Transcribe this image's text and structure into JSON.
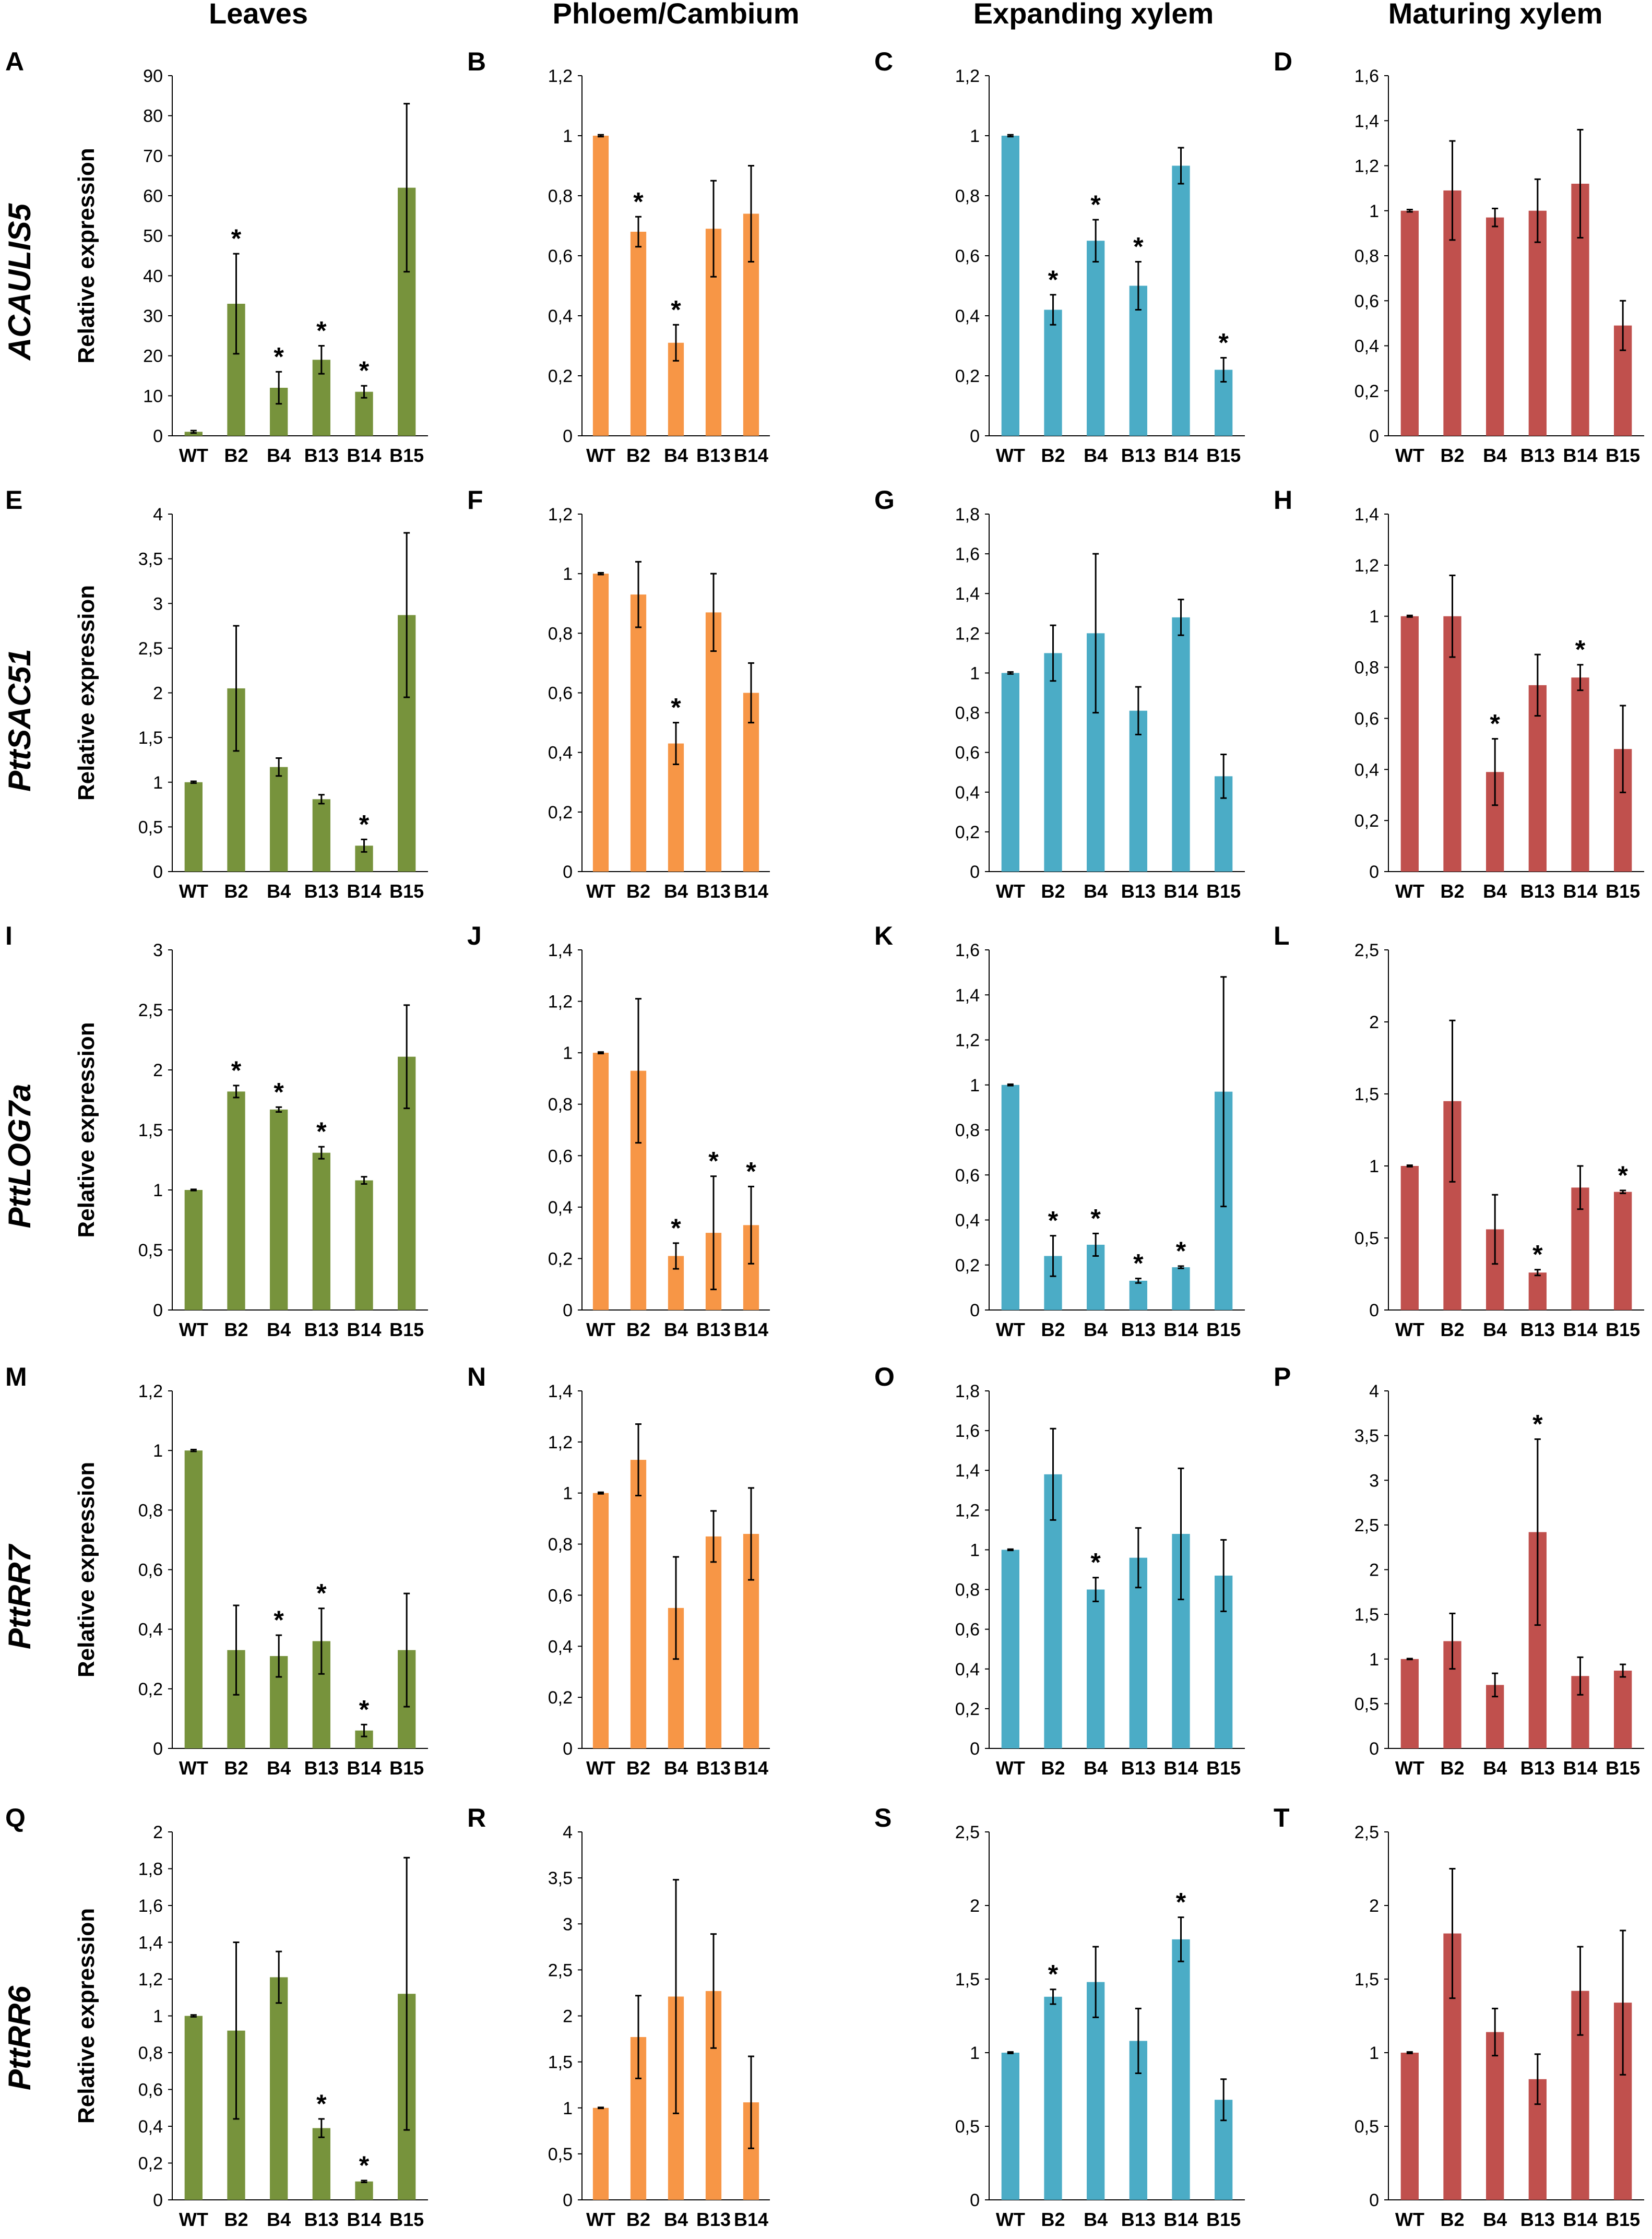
{
  "headers": {
    "col1": "Leaves",
    "col2": "Phloem/Cambium",
    "col3": "Expanding xylem",
    "col4": "Maturing xylem"
  },
  "rows": {
    "row1": "ACAULIS5",
    "row2": "PttSAC51",
    "row3": "PttLOG7a",
    "row4": "PttRR7",
    "row5": "PttRR6"
  },
  "y_axis_label": "Relative expression",
  "colors": {
    "Leaves": "#77933c",
    "Phloem/Cambium": "#f79646",
    "Expanding xylem": "#4bacc6",
    "Maturing xylem": "#c0504d"
  },
  "chart_data": [
    {
      "panel": "A",
      "gene": "ACAULIS5",
      "tissue": "Leaves",
      "type": "bar",
      "categories": [
        "WT",
        "B2",
        "B4",
        "B13",
        "B14",
        "B15"
      ],
      "values": [
        1,
        33,
        12,
        19,
        11,
        62
      ],
      "errors": [
        0.3,
        12.5,
        4,
        3.5,
        1.5,
        21
      ],
      "significant": [
        false,
        true,
        true,
        true,
        true,
        false
      ],
      "ylim": [
        0,
        90
      ],
      "yticks": [
        "0",
        "10",
        "20",
        "30",
        "40",
        "50",
        "60",
        "70",
        "80",
        "90"
      ],
      "ylabel": "Relative expression"
    },
    {
      "panel": "B",
      "gene": "ACAULIS5",
      "tissue": "Phloem/Cambium",
      "type": "bar",
      "categories": [
        "WT",
        "B2",
        "B4",
        "B13",
        "B14"
      ],
      "values": [
        1,
        0.68,
        0.31,
        0.69,
        0.74
      ],
      "errors": [
        0.003,
        0.05,
        0.06,
        0.16,
        0.16
      ],
      "significant": [
        false,
        true,
        true,
        false,
        false
      ],
      "ylim": [
        0,
        1.2
      ],
      "yticks": [
        "0",
        "0,2",
        "0,4",
        "0,6",
        "0,8",
        "1",
        "1,2"
      ]
    },
    {
      "panel": "C",
      "gene": "ACAULIS5",
      "tissue": "Expanding xylem",
      "type": "bar",
      "categories": [
        "WT",
        "B2",
        "B4",
        "B13",
        "B14",
        "B15"
      ],
      "values": [
        1,
        0.42,
        0.65,
        0.5,
        0.9,
        0.22
      ],
      "errors": [
        0.003,
        0.05,
        0.07,
        0.08,
        0.06,
        0.04
      ],
      "significant": [
        false,
        true,
        true,
        true,
        false,
        true
      ],
      "ylim": [
        0,
        1.2
      ],
      "yticks": [
        "0",
        "0,2",
        "0,4",
        "0,6",
        "0,8",
        "1",
        "1,2"
      ]
    },
    {
      "panel": "D",
      "gene": "ACAULIS5",
      "tissue": "Maturing xylem",
      "type": "bar",
      "categories": [
        "WT",
        "B2",
        "B4",
        "B13",
        "B14",
        "B15"
      ],
      "values": [
        1,
        1.09,
        0.97,
        1,
        1.12,
        0.49
      ],
      "errors": [
        0.005,
        0.22,
        0.04,
        0.14,
        0.24,
        0.11
      ],
      "significant": [
        false,
        false,
        false,
        false,
        false,
        false
      ],
      "ylim": [
        0,
        1.6
      ],
      "yticks": [
        "0",
        "0,2",
        "0,4",
        "0,6",
        "0,8",
        "1",
        "1,2",
        "1,4",
        "1,6"
      ]
    },
    {
      "panel": "E",
      "gene": "PttSAC51",
      "tissue": "Leaves",
      "type": "bar",
      "categories": [
        "WT",
        "B2",
        "B4",
        "B13",
        "B14",
        "B15"
      ],
      "values": [
        1,
        2.05,
        1.17,
        0.81,
        0.29,
        2.87
      ],
      "errors": [
        0.01,
        0.7,
        0.1,
        0.05,
        0.07,
        0.92
      ],
      "significant": [
        false,
        false,
        false,
        false,
        true,
        false
      ],
      "ylim": [
        0,
        4
      ],
      "yticks": [
        "0",
        "0,5",
        "1",
        "1,5",
        "2",
        "2,5",
        "3",
        "3,5",
        "4"
      ],
      "ylabel": "Relative expression"
    },
    {
      "panel": "F",
      "gene": "PttSAC51",
      "tissue": "Phloem/Cambium",
      "type": "bar",
      "categories": [
        "WT",
        "B2",
        "B4",
        "B13",
        "B14"
      ],
      "values": [
        1,
        0.93,
        0.43,
        0.87,
        0.6
      ],
      "errors": [
        0.003,
        0.11,
        0.07,
        0.13,
        0.1
      ],
      "significant": [
        false,
        false,
        true,
        false,
        false
      ],
      "ylim": [
        0,
        1.2
      ],
      "yticks": [
        "0",
        "0,2",
        "0,4",
        "0,6",
        "0,8",
        "1",
        "1,2"
      ]
    },
    {
      "panel": "G",
      "gene": "PttSAC51",
      "tissue": "Expanding xylem",
      "type": "bar",
      "categories": [
        "WT",
        "B2",
        "B4",
        "B13",
        "B14",
        "B15"
      ],
      "values": [
        1,
        1.1,
        1.2,
        0.81,
        1.28,
        0.48
      ],
      "errors": [
        0.005,
        0.14,
        0.4,
        0.12,
        0.09,
        0.11
      ],
      "significant": [
        false,
        false,
        false,
        false,
        false,
        false
      ],
      "ylim": [
        0,
        1.8
      ],
      "yticks": [
        "0",
        "0,2",
        "0,4",
        "0,6",
        "0,8",
        "1",
        "1,2",
        "1,4",
        "1,6",
        "1,8"
      ]
    },
    {
      "panel": "H",
      "gene": "PttSAC51",
      "tissue": "Maturing xylem",
      "type": "bar",
      "categories": [
        "WT",
        "B2",
        "B4",
        "B13",
        "B14",
        "B15"
      ],
      "values": [
        1,
        1,
        0.39,
        0.73,
        0.76,
        0.48
      ],
      "errors": [
        0.003,
        0.16,
        0.13,
        0.12,
        0.05,
        0.17
      ],
      "significant": [
        false,
        false,
        true,
        false,
        true,
        false
      ],
      "ylim": [
        0,
        1.4
      ],
      "yticks": [
        "0",
        "0,2",
        "0,4",
        "0,6",
        "0,8",
        "1",
        "1,2",
        "1,4"
      ]
    },
    {
      "panel": "I",
      "gene": "PttLOG7a",
      "tissue": "Leaves",
      "type": "bar",
      "categories": [
        "WT",
        "B2",
        "B4",
        "B13",
        "B14",
        "B15"
      ],
      "values": [
        1,
        1.82,
        1.67,
        1.31,
        1.08,
        2.11
      ],
      "errors": [
        0.005,
        0.05,
        0.02,
        0.05,
        0.03,
        0.43
      ],
      "significant": [
        false,
        true,
        true,
        true,
        false,
        false
      ],
      "ylim": [
        0,
        3
      ],
      "yticks": [
        "0",
        "0,5",
        "1",
        "1,5",
        "2",
        "2,5",
        "3"
      ],
      "ylabel": "Relative expression"
    },
    {
      "panel": "J",
      "gene": "PttLOG7a",
      "tissue": "Phloem/Cambium",
      "type": "bar",
      "categories": [
        "WT",
        "B2",
        "B4",
        "B13",
        "B14"
      ],
      "values": [
        1,
        0.93,
        0.21,
        0.3,
        0.33
      ],
      "errors": [
        0.003,
        0.28,
        0.05,
        0.22,
        0.15
      ],
      "significant": [
        false,
        false,
        true,
        true,
        true
      ],
      "ylim": [
        0,
        1.4
      ],
      "yticks": [
        "0",
        "0,2",
        "0,4",
        "0,6",
        "0,8",
        "1",
        "1,2",
        "1,4"
      ]
    },
    {
      "panel": "K",
      "gene": "PttLOG7a",
      "tissue": "Expanding xylem",
      "type": "bar",
      "categories": [
        "WT",
        "B2",
        "B4",
        "B13",
        "B14",
        "B15"
      ],
      "values": [
        1,
        0.24,
        0.29,
        0.13,
        0.19,
        0.97
      ],
      "errors": [
        0.003,
        0.09,
        0.05,
        0.01,
        0.005,
        0.51
      ],
      "significant": [
        false,
        true,
        true,
        true,
        true,
        false
      ],
      "ylim": [
        0,
        1.6
      ],
      "yticks": [
        "0",
        "0,2",
        "0,4",
        "0,6",
        "0,8",
        "1",
        "1,2",
        "1,4",
        "1,6"
      ]
    },
    {
      "panel": "L",
      "gene": "PttLOG7a",
      "tissue": "Maturing xylem",
      "type": "bar",
      "categories": [
        "WT",
        "B2",
        "B4",
        "B13",
        "B14",
        "B15"
      ],
      "values": [
        1,
        1.45,
        0.56,
        0.26,
        0.85,
        0.82
      ],
      "errors": [
        0.005,
        0.56,
        0.24,
        0.02,
        0.15,
        0.01
      ],
      "significant": [
        false,
        false,
        false,
        true,
        false,
        true
      ],
      "ylim": [
        0,
        2.5
      ],
      "yticks": [
        "0",
        "0,5",
        "1",
        "1,5",
        "2",
        "2,5"
      ]
    },
    {
      "panel": "M",
      "gene": "PttRR7",
      "tissue": "Leaves",
      "type": "bar",
      "categories": [
        "WT",
        "B2",
        "B4",
        "B13",
        "B14",
        "B15"
      ],
      "values": [
        1,
        0.33,
        0.31,
        0.36,
        0.06,
        0.33
      ],
      "errors": [
        0.003,
        0.15,
        0.07,
        0.11,
        0.02,
        0.19
      ],
      "significant": [
        false,
        false,
        true,
        true,
        true,
        false
      ],
      "ylim": [
        0,
        1.2
      ],
      "yticks": [
        "0",
        "0,2",
        "0,4",
        "0,6",
        "0,8",
        "1",
        "1,2"
      ],
      "ylabel": "Relative expression"
    },
    {
      "panel": "N",
      "gene": "PttRR7",
      "tissue": "Phloem/Cambium",
      "type": "bar",
      "categories": [
        "WT",
        "B2",
        "B4",
        "B13",
        "B14"
      ],
      "values": [
        1,
        1.13,
        0.55,
        0.83,
        0.84
      ],
      "errors": [
        0.003,
        0.14,
        0.2,
        0.1,
        0.18
      ],
      "significant": [
        false,
        false,
        false,
        false,
        false
      ],
      "ylim": [
        0,
        1.4
      ],
      "yticks": [
        "0",
        "0,2",
        "0,4",
        "0,6",
        "0,8",
        "1",
        "1,2",
        "1,4"
      ]
    },
    {
      "panel": "O",
      "gene": "PttRR7",
      "tissue": "Expanding xylem",
      "type": "bar",
      "categories": [
        "WT",
        "B2",
        "B4",
        "B13",
        "B14",
        "B15"
      ],
      "values": [
        1,
        1.38,
        0.8,
        0.96,
        1.08,
        0.87
      ],
      "errors": [
        0.003,
        0.23,
        0.06,
        0.15,
        0.33,
        0.18
      ],
      "significant": [
        false,
        false,
        true,
        false,
        false,
        false
      ],
      "ylim": [
        0,
        1.8
      ],
      "yticks": [
        "0",
        "0,2",
        "0,4",
        "0,6",
        "0,8",
        "1",
        "1,2",
        "1,4",
        "1,6",
        "1,8"
      ]
    },
    {
      "panel": "P",
      "gene": "PttRR7",
      "tissue": "Maturing xylem",
      "type": "bar",
      "categories": [
        "WT",
        "B2",
        "B4",
        "B13",
        "B14",
        "B15"
      ],
      "values": [
        1,
        1.2,
        0.71,
        2.42,
        0.81,
        0.87
      ],
      "errors": [
        0.005,
        0.31,
        0.13,
        1.04,
        0.21,
        0.07
      ],
      "significant": [
        false,
        false,
        false,
        true,
        false,
        false
      ],
      "ylim": [
        0,
        4
      ],
      "yticks": [
        "0",
        "0,5",
        "1",
        "1,5",
        "2",
        "2,5",
        "3",
        "3,5",
        "4"
      ]
    },
    {
      "panel": "Q",
      "gene": "PttRR6",
      "tissue": "Leaves",
      "type": "bar",
      "categories": [
        "WT",
        "B2",
        "B4",
        "B13",
        "B14",
        "B15"
      ],
      "values": [
        1,
        0.92,
        1.21,
        0.39,
        0.1,
        1.12
      ],
      "errors": [
        0.005,
        0.48,
        0.14,
        0.05,
        0.005,
        0.74
      ],
      "significant": [
        false,
        false,
        false,
        true,
        true,
        false
      ],
      "ylim": [
        0,
        2
      ],
      "yticks": [
        "0",
        "0,2",
        "0,4",
        "0,6",
        "0,8",
        "1",
        "1,2",
        "1,4",
        "1,6",
        "1,8",
        "2"
      ],
      "ylabel": "Relative expression"
    },
    {
      "panel": "R",
      "gene": "PttRR6",
      "tissue": "Phloem/Cambium",
      "type": "bar",
      "categories": [
        "WT",
        "B2",
        "B4",
        "B13",
        "B14"
      ],
      "values": [
        1,
        1.77,
        2.21,
        2.27,
        1.06
      ],
      "errors": [
        0.005,
        0.45,
        1.27,
        0.62,
        0.5
      ],
      "significant": [
        false,
        false,
        false,
        false,
        false
      ],
      "ylim": [
        0,
        4
      ],
      "yticks": [
        "0",
        "0,5",
        "1",
        "1,5",
        "2",
        "2,5",
        "3",
        "3,5",
        "4"
      ]
    },
    {
      "panel": "S",
      "gene": "PttRR6",
      "tissue": "Expanding xylem",
      "type": "bar",
      "categories": [
        "WT",
        "B2",
        "B4",
        "B13",
        "B14",
        "B15"
      ],
      "values": [
        1,
        1.38,
        1.48,
        1.08,
        1.77,
        0.68
      ],
      "errors": [
        0.005,
        0.05,
        0.24,
        0.22,
        0.15,
        0.14
      ],
      "significant": [
        false,
        true,
        false,
        false,
        true,
        false
      ],
      "ylim": [
        0,
        2.5
      ],
      "yticks": [
        "0",
        "0,5",
        "1",
        "1,5",
        "2",
        "2,5"
      ]
    },
    {
      "panel": "T",
      "gene": "PttRR6",
      "tissue": "Maturing xylem",
      "type": "bar",
      "categories": [
        "WT",
        "B2",
        "B4",
        "B13",
        "B14",
        "B15"
      ],
      "values": [
        1,
        1.81,
        1.14,
        0.82,
        1.42,
        1.34
      ],
      "errors": [
        0.005,
        0.44,
        0.16,
        0.17,
        0.3,
        0.49
      ],
      "significant": [
        false,
        false,
        false,
        false,
        false,
        false
      ],
      "ylim": [
        0,
        2.5
      ],
      "yticks": [
        "0",
        "0,5",
        "1",
        "1,5",
        "2",
        "2,5"
      ]
    }
  ]
}
